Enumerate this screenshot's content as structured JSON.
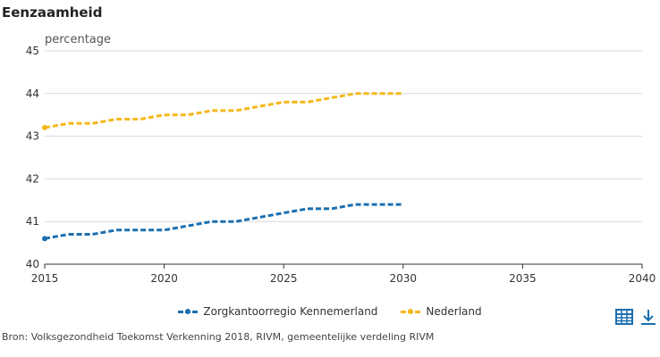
{
  "chart_data": {
    "type": "line",
    "title": "Eenzaamheid",
    "ylabel": "percentage",
    "xlabel": "",
    "xlim": [
      2015,
      2040
    ],
    "ylim": [
      40,
      45
    ],
    "x_ticks": [
      2015,
      2020,
      2025,
      2030,
      2035,
      2040
    ],
    "y_ticks": [
      40,
      41,
      42,
      43,
      44,
      45
    ],
    "grid": true,
    "legend_position": "bottom",
    "x": [
      2015,
      2016,
      2017,
      2018,
      2019,
      2020,
      2021,
      2022,
      2023,
      2024,
      2025,
      2026,
      2027,
      2028,
      2029,
      2030
    ],
    "series": [
      {
        "name": "Zorgkantoorregio Kennemerland",
        "color": "#1a6faf",
        "values": [
          40.6,
          40.7,
          40.7,
          40.8,
          40.8,
          40.8,
          40.9,
          41.0,
          41.0,
          41.1,
          41.2,
          41.3,
          41.3,
          41.4,
          41.4,
          41.4
        ]
      },
      {
        "name": "Nederland",
        "color": "#f5b81c",
        "values": [
          43.2,
          43.3,
          43.3,
          43.4,
          43.4,
          43.5,
          43.5,
          43.6,
          43.6,
          43.7,
          43.8,
          43.8,
          43.9,
          44.0,
          44.0,
          44.0
        ]
      }
    ]
  },
  "footer": {
    "source": "Bron: Volksgezondheid Toekomst Verkenning 2018, RIVM, gemeentelijke verdeling RIVM"
  },
  "icons": {
    "table": "table-icon",
    "download": "download-icon",
    "color": "#1a6faf"
  }
}
